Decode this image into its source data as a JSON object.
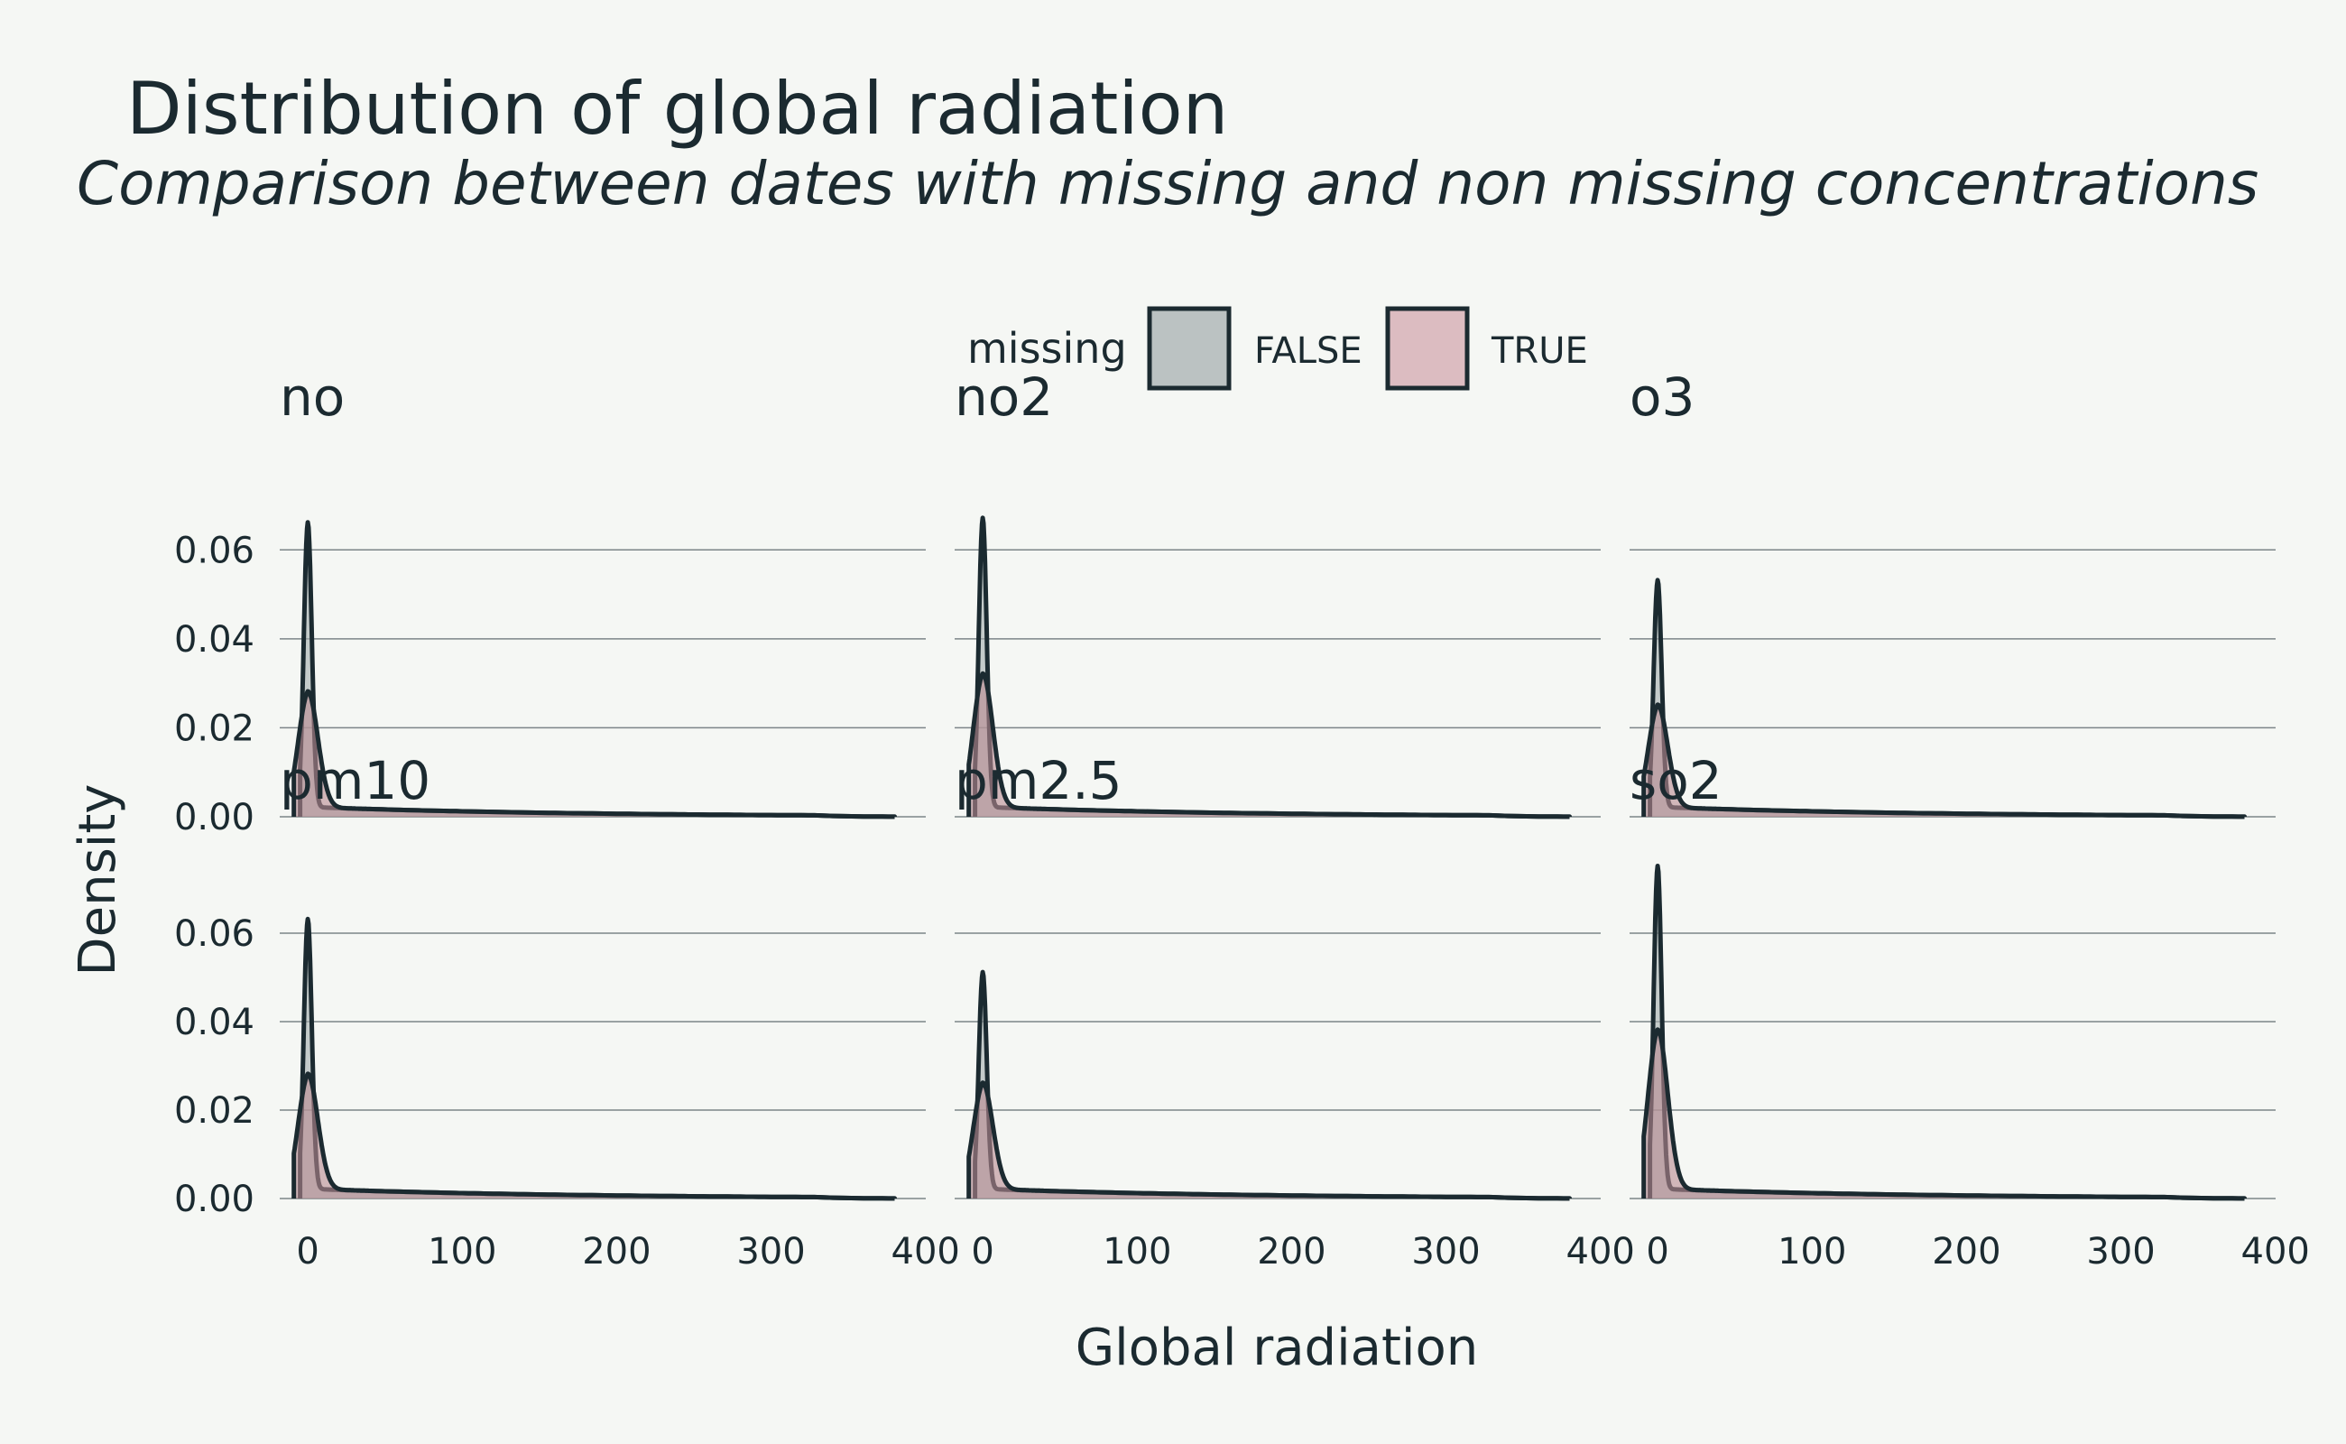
{
  "chart_data": {
    "type": "area",
    "title": "Distribution of global radiation",
    "subtitle": "Comparison between dates with missing and non missing concentrations",
    "xlabel": "Global radiation",
    "ylabel": "Density",
    "legend": {
      "title": "missing",
      "placement": "top",
      "entries": [
        {
          "label": "FALSE",
          "color": "#bbc2c2"
        },
        {
          "label": "TRUE",
          "color": "#dcbcc1"
        }
      ]
    },
    "xlim": [
      -20,
      400
    ],
    "ylim": [
      0,
      0.07
    ],
    "x_ticks": [
      0,
      100,
      200,
      300,
      400
    ],
    "y_ticks": [
      0.0,
      0.02,
      0.04,
      0.06
    ],
    "y_tick_labels": [
      "0.00",
      "0.02",
      "0.04",
      "0.06"
    ],
    "grid": "horizontal major",
    "series_colors": {
      "FALSE": "#a4adae",
      "TRUE": "#b98a91"
    },
    "facets": [
      {
        "name": "no",
        "series": [
          {
            "name": "FALSE",
            "peak": 0.064
          },
          {
            "name": "TRUE",
            "peak": 0.026
          }
        ]
      },
      {
        "name": "no2",
        "series": [
          {
            "name": "FALSE",
            "peak": 0.065
          },
          {
            "name": "TRUE",
            "peak": 0.03
          }
        ]
      },
      {
        "name": "o3",
        "series": [
          {
            "name": "FALSE",
            "peak": 0.051
          },
          {
            "name": "TRUE",
            "peak": 0.023
          }
        ]
      },
      {
        "name": "pm10",
        "series": [
          {
            "name": "FALSE",
            "peak": 0.061
          },
          {
            "name": "TRUE",
            "peak": 0.026
          }
        ]
      },
      {
        "name": "pm2.5",
        "series": [
          {
            "name": "FALSE",
            "peak": 0.049
          },
          {
            "name": "TRUE",
            "peak": 0.024
          }
        ]
      },
      {
        "name": "so2",
        "series": [
          {
            "name": "FALSE",
            "peak": 0.073
          },
          {
            "name": "TRUE",
            "peak": 0.036
          }
        ]
      }
    ]
  }
}
